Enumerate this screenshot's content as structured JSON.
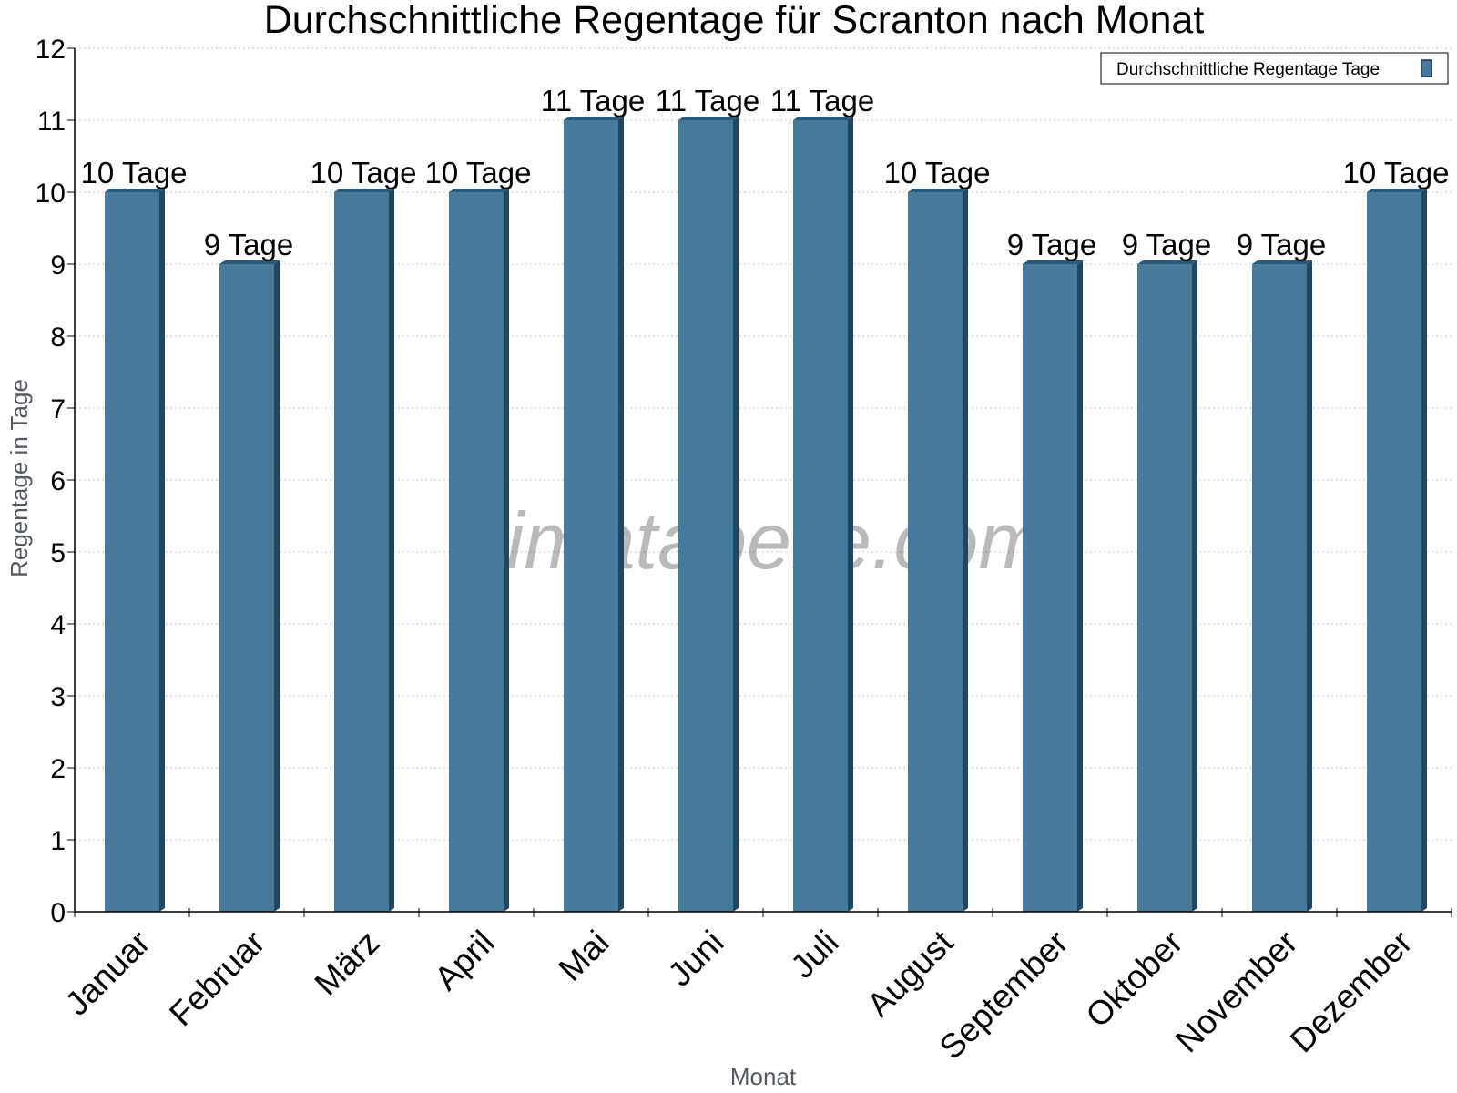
{
  "watermark": "klimatabelle.com",
  "chart_data": {
    "type": "bar",
    "title": "Durchschnittliche Regentage für Scranton nach Monat",
    "xlabel": "Monat",
    "ylabel": "Regentage in Tage",
    "ylim": [
      0,
      12
    ],
    "yticks": [
      "0",
      "1",
      "2",
      "3",
      "4",
      "5",
      "6",
      "7",
      "8",
      "9",
      "10",
      "11",
      "12"
    ],
    "grid": true,
    "legend_position": "top-right",
    "categories": [
      "Januar",
      "Februar",
      "März",
      "April",
      "Mai",
      "Juni",
      "Juli",
      "August",
      "September",
      "Oktober",
      "November",
      "Dezember"
    ],
    "series": [
      {
        "name": "Durchschnittliche Regentage Tage",
        "color": "#457a9c",
        "values": [
          10,
          9,
          10,
          10,
          11,
          11,
          11,
          10,
          9,
          9,
          9,
          10
        ],
        "labels": [
          "10 Tage",
          "9 Tage",
          "10 Tage",
          "10 Tage",
          "11 Tage",
          "11 Tage",
          "11 Tage",
          "10 Tage",
          "9 Tage",
          "9 Tage",
          "9 Tage",
          "10 Tage"
        ]
      }
    ]
  }
}
